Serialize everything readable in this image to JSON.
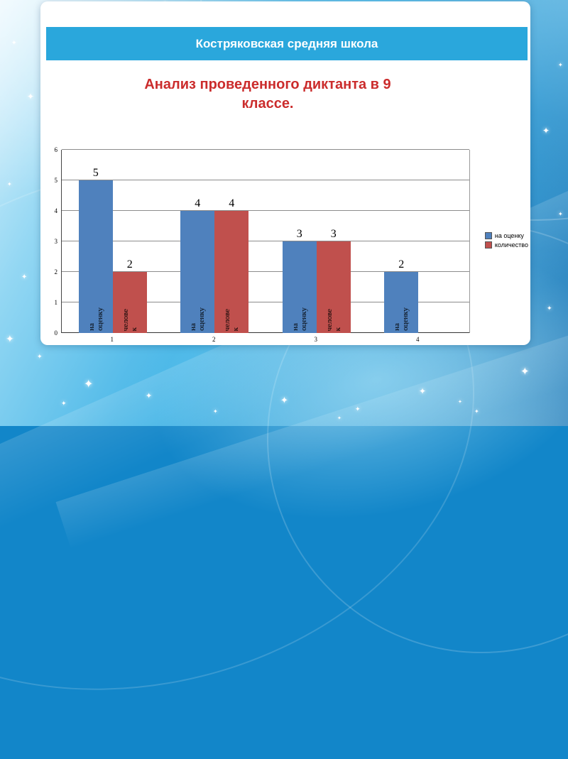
{
  "slide": {
    "banner_title": "Костряковская средняя школа",
    "title_line1": "Анализ проведенного диктанта в 9",
    "title_line2": "классе."
  },
  "chart_data": {
    "type": "bar",
    "title": "",
    "categories": [
      "1",
      "2",
      "3",
      "4"
    ],
    "series": [
      {
        "name": "на оценку",
        "color": "#4f81bd",
        "values": [
          5,
          4,
          3,
          2
        ],
        "bar_label": "на\nоценку"
      },
      {
        "name": "количество",
        "color": "#c0504d",
        "values": [
          2,
          4,
          3,
          null
        ],
        "bar_label": "челове\nк"
      }
    ],
    "xlabel": "",
    "ylabel": "",
    "ylim": [
      0,
      6
    ],
    "ytick_step": 1,
    "grid": true,
    "legend_position": "right"
  }
}
